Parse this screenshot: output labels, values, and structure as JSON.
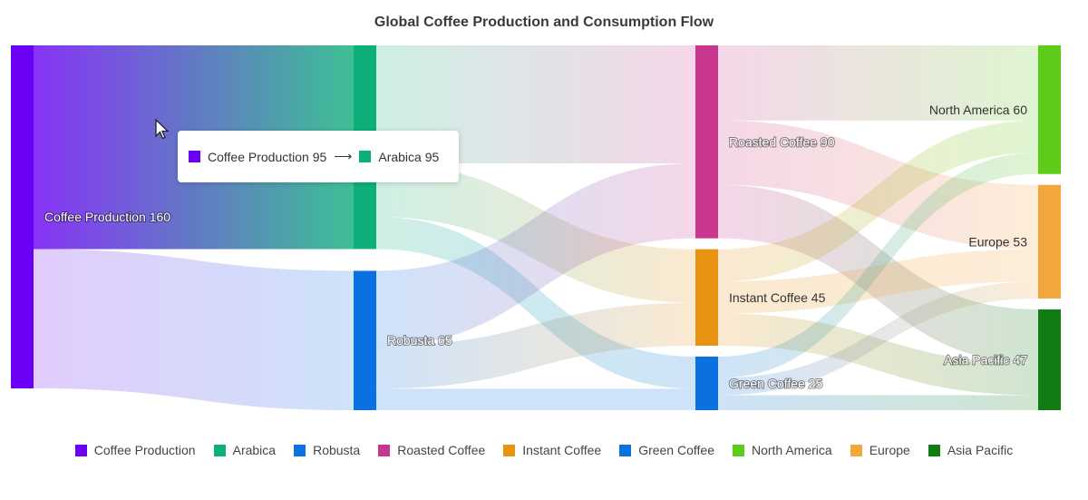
{
  "chart_data": {
    "type": "sankey",
    "title": "Global Coffee Production and Consumption Flow",
    "nodes": [
      {
        "id": "coffee_production",
        "name": "Coffee Production",
        "value": 160,
        "color": "#6a00f4",
        "column": 0
      },
      {
        "id": "arabica",
        "name": "Arabica",
        "value": 95,
        "color": "#0db07a",
        "column": 1
      },
      {
        "id": "robusta",
        "name": "Robusta",
        "value": 65,
        "color": "#0b70e0",
        "column": 1
      },
      {
        "id": "roasted",
        "name": "Roasted Coffee",
        "value": 90,
        "color": "#c9368e",
        "column": 2
      },
      {
        "id": "instant",
        "name": "Instant Coffee",
        "value": 45,
        "color": "#e89213",
        "column": 2
      },
      {
        "id": "green",
        "name": "Green Coffee",
        "value": 25,
        "color": "#0b70e0",
        "column": 2
      },
      {
        "id": "north_america",
        "name": "North America",
        "value": 60,
        "color": "#5ccc18",
        "column": 3
      },
      {
        "id": "europe",
        "name": "Europe",
        "value": 53,
        "color": "#f2a63e",
        "column": 3
      },
      {
        "id": "asia_pacific",
        "name": "Asia Pacific",
        "value": 47,
        "color": "#117c12",
        "column": 3
      }
    ],
    "links": [
      {
        "source": "coffee_production",
        "target": "arabica",
        "value": 95
      },
      {
        "source": "coffee_production",
        "target": "robusta",
        "value": 65
      },
      {
        "source": "arabica",
        "target": "roasted",
        "value": 55
      },
      {
        "source": "arabica",
        "target": "instant",
        "value": 25
      },
      {
        "source": "arabica",
        "target": "green",
        "value": 15
      },
      {
        "source": "robusta",
        "target": "roasted",
        "value": 35
      },
      {
        "source": "robusta",
        "target": "instant",
        "value": 20
      },
      {
        "source": "robusta",
        "target": "green",
        "value": 10
      },
      {
        "source": "roasted",
        "target": "north_america",
        "value": 35
      },
      {
        "source": "roasted",
        "target": "europe",
        "value": 30
      },
      {
        "source": "roasted",
        "target": "asia_pacific",
        "value": 25
      },
      {
        "source": "instant",
        "target": "north_america",
        "value": 15
      },
      {
        "source": "instant",
        "target": "europe",
        "value": 15
      },
      {
        "source": "instant",
        "target": "asia_pacific",
        "value": 15
      },
      {
        "source": "green",
        "target": "north_america",
        "value": 10
      },
      {
        "source": "green",
        "target": "europe",
        "value": 8
      },
      {
        "source": "green",
        "target": "asia_pacific",
        "value": 7
      }
    ],
    "legend": [
      "Coffee Production",
      "Arabica",
      "Robusta",
      "Roasted Coffee",
      "Instant Coffee",
      "Green Coffee",
      "North America",
      "Europe",
      "Asia Pacific"
    ],
    "legend_position": "bottom",
    "highlighted_link": {
      "source": "coffee_production",
      "target": "arabica",
      "value": 95
    }
  },
  "tooltip": {
    "source_label": "Coffee Production 95",
    "arrow": "⟶",
    "target_label": "Arabica 95",
    "source_color": "#6a00f4",
    "target_color": "#0db07a"
  }
}
